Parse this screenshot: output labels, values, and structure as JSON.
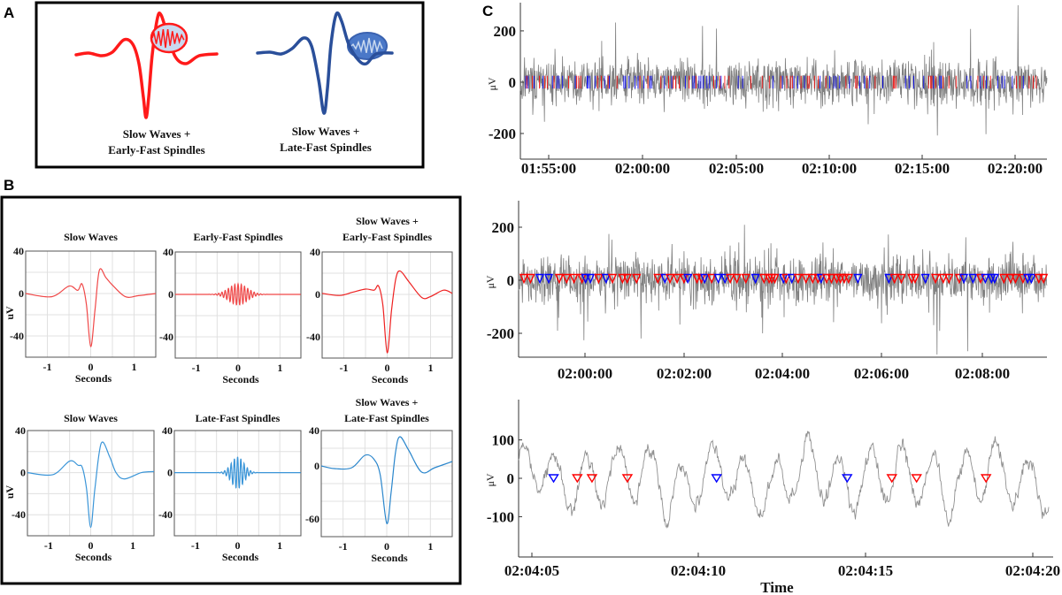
{
  "panel_labels": {
    "a": "A",
    "b": "B",
    "c": "C"
  },
  "panel_a": {
    "items": [
      {
        "line1": "Slow Waves +",
        "line2": "Early-Fast Spindles",
        "color": "#ff1a1a"
      },
      {
        "line1": "Slow Waves +",
        "line2": "Late-Fast Spindles",
        "color": "#2a4f9a"
      }
    ]
  },
  "chart_data": [
    {
      "panel": "B",
      "type": "line",
      "title": [
        "Slow Waves"
      ],
      "xlabel": "Seconds",
      "ylabel": "uV",
      "xlim": [
        -1.5,
        1.5
      ],
      "ylim": [
        -60,
        40
      ],
      "xticks": [
        -1,
        0,
        1
      ],
      "yticks": [
        40,
        0,
        -40
      ],
      "grid": true,
      "color": "#f04848",
      "x": [
        -1.5,
        -0.9,
        -0.5,
        -0.3,
        -0.2,
        -0.1,
        0,
        0.1,
        0.2,
        0.35,
        0.5,
        0.8,
        1.1,
        1.5
      ],
      "y": [
        0,
        -3,
        7,
        3,
        9,
        -10,
        -50,
        -15,
        22,
        15,
        8,
        -3,
        -2,
        0
      ]
    },
    {
      "panel": "B",
      "type": "line",
      "title": [
        "Early-Fast Spindles"
      ],
      "xlabel": "Seconds",
      "ylabel": "",
      "xlim": [
        -1.5,
        1.5
      ],
      "ylim": [
        -60,
        40
      ],
      "xticks": [
        -1,
        0,
        1
      ],
      "yticks": [
        40,
        0,
        -40
      ],
      "grid": true,
      "color": "#f04848",
      "spindle": {
        "peak_amplitude": 10,
        "center": 0
      }
    },
    {
      "panel": "B",
      "type": "line",
      "title": [
        "Slow Waves +",
        "Early-Fast Spindles"
      ],
      "xlabel": "Seconds",
      "ylabel": "",
      "xlim": [
        -1.5,
        1.5
      ],
      "ylim": [
        -60,
        40
      ],
      "xticks": [
        -1,
        0,
        1
      ],
      "yticks": [
        40,
        0,
        -40
      ],
      "grid": true,
      "color": "#ee2020",
      "x": [
        -1.5,
        -1.1,
        -0.8,
        -0.5,
        -0.3,
        -0.2,
        -0.1,
        0,
        0.1,
        0.2,
        0.3,
        0.5,
        0.8,
        1.0,
        1.3,
        1.5
      ],
      "y": [
        1,
        -1,
        2,
        5,
        4,
        8,
        -10,
        -55,
        -15,
        15,
        22,
        12,
        -3,
        -2,
        4,
        1
      ]
    },
    {
      "panel": "B",
      "type": "line",
      "title": [
        "Slow Waves"
      ],
      "xlabel": "Seconds",
      "ylabel": "uV",
      "xlim": [
        -1.5,
        1.5
      ],
      "ylim": [
        -60,
        40
      ],
      "xticks": [
        -1,
        0,
        1
      ],
      "yticks": [
        40,
        0,
        -40
      ],
      "grid": true,
      "color": "#3a95d8",
      "x": [
        -1.5,
        -0.9,
        -0.5,
        -0.3,
        -0.2,
        -0.1,
        0,
        0.1,
        0.25,
        0.45,
        0.6,
        0.8,
        1.2,
        1.5
      ],
      "y": [
        0,
        -2,
        11,
        7,
        5,
        -15,
        -52,
        -15,
        28,
        15,
        0,
        -6,
        0,
        1
      ]
    },
    {
      "panel": "B",
      "type": "line",
      "title": [
        "Late-Fast Spindles"
      ],
      "xlabel": "Seconds",
      "ylabel": "",
      "xlim": [
        -1.5,
        1.5
      ],
      "ylim": [
        -60,
        40
      ],
      "xticks": [
        -1,
        0,
        1
      ],
      "yticks": [
        40,
        0,
        -40
      ],
      "grid": true,
      "color": "#3a95d8",
      "spindle": {
        "peak_amplitude": 15,
        "center": 0
      }
    },
    {
      "panel": "B",
      "type": "line",
      "title": [
        "Slow Waves +",
        "Late-Fast Spindles"
      ],
      "xlabel": "Seconds",
      "ylabel": "",
      "xlim": [
        -1.5,
        1.5
      ],
      "ylim": [
        -80,
        40
      ],
      "xticks": [
        -1,
        0,
        1
      ],
      "yticks": [
        40,
        0,
        -60
      ],
      "grid": true,
      "color": "#2a86cc",
      "x": [
        -1.5,
        -1.2,
        -0.8,
        -0.5,
        -0.3,
        -0.15,
        0,
        0.1,
        0.2,
        0.3,
        0.5,
        0.8,
        1.1,
        1.5
      ],
      "y": [
        0,
        -3,
        -2,
        12,
        8,
        -10,
        -65,
        -30,
        15,
        33,
        18,
        -7,
        -2,
        5
      ]
    },
    {
      "panel": "C",
      "type": "line",
      "ylabel": "μV",
      "xlabel": "",
      "xlim": [
        "01:53:30",
        "02:21:40"
      ],
      "ylim": [
        -300,
        310
      ],
      "yticks": [
        200,
        0,
        -200
      ],
      "xticks": [
        "01:55:00",
        "02:00:00",
        "02:05:00",
        "02:10:00",
        "02:15:00",
        "02:20:00"
      ],
      "signal_color": "#808080",
      "marker_style": "vertical-tick",
      "marker_colors": {
        "early": "#ff0000",
        "late": "#0000ff"
      }
    },
    {
      "panel": "C",
      "type": "line",
      "ylabel": "μV",
      "xlabel": "",
      "xlim": [
        "01:58:40",
        "02:09:20"
      ],
      "ylim": [
        -290,
        300
      ],
      "yticks": [
        200,
        0,
        -200
      ],
      "xticks": [
        "02:00:00",
        "02:02:00",
        "02:04:00",
        "02:06:00",
        "02:08:00"
      ],
      "signal_color": "#808080",
      "marker_style": "triangle-down",
      "marker_colors": {
        "early": "#ff0000",
        "late": "#0000ff"
      }
    },
    {
      "panel": "C",
      "type": "line",
      "ylabel": "μV",
      "xlabel": "Time",
      "xlim": [
        "02:04:04.6",
        "02:04:20.6"
      ],
      "ylim": [
        -205,
        205
      ],
      "yticks": [
        100,
        0,
        -100
      ],
      "xticks": [
        "02:04:05",
        "02:04:10",
        "02:04:15",
        "02:04:20"
      ],
      "signal_color": "#909090",
      "marker_style": "triangle-down",
      "events": [
        {
          "time_s": 5.65,
          "type": "late",
          "color": "#0000ff"
        },
        {
          "time_s": 6.36,
          "type": "early",
          "color": "#ff0000"
        },
        {
          "time_s": 6.8,
          "type": "early",
          "color": "#ff0000"
        },
        {
          "time_s": 7.86,
          "type": "early",
          "color": "#ff0000"
        },
        {
          "time_s": 10.53,
          "type": "late",
          "color": "#0000ff"
        },
        {
          "time_s": 14.44,
          "type": "late",
          "color": "#0000ff"
        },
        {
          "time_s": 15.78,
          "type": "early",
          "color": "#ff0000"
        },
        {
          "time_s": 16.52,
          "type": "early",
          "color": "#ff0000"
        },
        {
          "time_s": 18.6,
          "type": "early",
          "color": "#ff0000"
        }
      ]
    }
  ]
}
